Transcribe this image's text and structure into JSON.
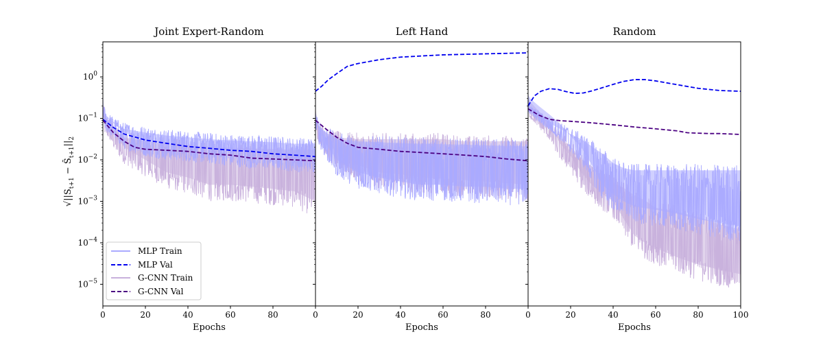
{
  "figure": {
    "ylabel": "√||S_{t+1} − Ŝ_{t+1}||₂",
    "ylabel_parts": {
      "root": "√",
      "body": "||S",
      "sub1": "t+1",
      "minus": " − Ŝ",
      "sub2": "t+1",
      "tail": "||",
      "sub3": "2"
    }
  },
  "legend": {
    "items": [
      {
        "label": "MLP Train",
        "style": "solid",
        "color": "#aaaaff"
      },
      {
        "label": "MLP Val",
        "style": "dashed",
        "color": "#0000ee"
      },
      {
        "label": "G-CNN Train",
        "style": "solid",
        "color": "#c8b0dc"
      },
      {
        "label": "G-CNN Val",
        "style": "dashed",
        "color": "#4b0082"
      }
    ]
  },
  "chart_data": [
    {
      "type": "line",
      "title": "Joint Expert-Random",
      "xlabel": "Epochs",
      "yscale": "log",
      "xlim": [
        0,
        100
      ],
      "ylim": [
        3e-06,
        7
      ],
      "xticks": [
        0,
        20,
        40,
        60,
        80
      ],
      "yticks": [
        1e-05,
        0.0001,
        0.001,
        0.01,
        0.1,
        1
      ],
      "ytick_labels": [
        [
          "10",
          "−5"
        ],
        [
          "10",
          "−4"
        ],
        [
          "10",
          "−3"
        ],
        [
          "10",
          "−2"
        ],
        [
          "10",
          "−1"
        ],
        [
          "10",
          "0"
        ]
      ],
      "series": [
        {
          "name": "MLP Train",
          "kind": "band",
          "color": "#aaaaff",
          "x": [
            0,
            1,
            3,
            6,
            10,
            20,
            30,
            40,
            50,
            60,
            70,
            80,
            90,
            100
          ],
          "low": [
            0.12,
            0.05,
            0.04,
            0.03,
            0.018,
            0.012,
            0.01,
            0.009,
            0.008,
            0.007,
            0.006,
            0.006,
            0.005,
            0.005
          ],
          "high": [
            0.45,
            0.16,
            0.13,
            0.1,
            0.08,
            0.065,
            0.055,
            0.05,
            0.045,
            0.042,
            0.04,
            0.038,
            0.035,
            0.035
          ]
        },
        {
          "name": "G-CNN Train",
          "kind": "band",
          "color": "#c8b0dc",
          "x": [
            0,
            1,
            3,
            6,
            10,
            20,
            30,
            40,
            50,
            60,
            70,
            80,
            90,
            100
          ],
          "low": [
            0.1,
            0.04,
            0.03,
            0.015,
            0.008,
            0.004,
            0.002,
            0.0015,
            0.001,
            0.001,
            0.0009,
            0.0008,
            0.0007,
            0.0004
          ],
          "high": [
            0.3,
            0.12,
            0.1,
            0.07,
            0.05,
            0.04,
            0.035,
            0.032,
            0.03,
            0.028,
            0.027,
            0.026,
            0.025,
            0.025
          ]
        },
        {
          "name": "MLP Val",
          "kind": "dashed",
          "color": "#0000ee",
          "x": [
            0,
            5,
            10,
            20,
            30,
            40,
            50,
            60,
            70,
            80,
            90,
            100
          ],
          "y": [
            0.095,
            0.06,
            0.042,
            0.03,
            0.025,
            0.021,
            0.019,
            0.017,
            0.016,
            0.014,
            0.013,
            0.012
          ]
        },
        {
          "name": "G-CNN Val",
          "kind": "dashed",
          "color": "#4b0082",
          "x": [
            0,
            5,
            10,
            15,
            20,
            30,
            40,
            50,
            60,
            70,
            80,
            90,
            100
          ],
          "y": [
            0.09,
            0.045,
            0.028,
            0.02,
            0.018,
            0.017,
            0.016,
            0.014,
            0.013,
            0.011,
            0.0105,
            0.01,
            0.0095
          ]
        }
      ]
    },
    {
      "type": "line",
      "title": "Left Hand",
      "xlabel": "Epochs",
      "yscale": "log",
      "xlim": [
        0,
        100
      ],
      "ylim": [
        3e-06,
        7
      ],
      "xticks": [
        0,
        20,
        40,
        60,
        80
      ],
      "series": [
        {
          "name": "MLP Train",
          "kind": "band",
          "color": "#aaaaff",
          "x": [
            0,
            1,
            3,
            6,
            10,
            20,
            30,
            40,
            50,
            60,
            70,
            80,
            90,
            100
          ],
          "low": [
            0.06,
            0.03,
            0.015,
            0.008,
            0.004,
            0.002,
            0.0015,
            0.0012,
            0.001,
            0.001,
            0.0009,
            0.0009,
            0.0008,
            0.0008
          ],
          "high": [
            0.15,
            0.1,
            0.08,
            0.06,
            0.045,
            0.04,
            0.038,
            0.036,
            0.035,
            0.034,
            0.033,
            0.032,
            0.031,
            0.03
          ]
        },
        {
          "name": "G-CNN Train",
          "kind": "band",
          "color": "#c8b0dc",
          "x": [
            0,
            1,
            3,
            6,
            10,
            20,
            30,
            40,
            50,
            60,
            70,
            80,
            90,
            100
          ],
          "low": [
            0.07,
            0.03,
            0.02,
            0.01,
            0.006,
            0.003,
            0.002,
            0.0018,
            0.0015,
            0.0014,
            0.0013,
            0.0012,
            0.0011,
            0.001
          ],
          "high": [
            0.12,
            0.09,
            0.075,
            0.06,
            0.05,
            0.045,
            0.045,
            0.045,
            0.045,
            0.045,
            0.04,
            0.04,
            0.04,
            0.04
          ]
        },
        {
          "name": "MLP Val",
          "kind": "dashed",
          "color": "#0000ee",
          "x": [
            0,
            3,
            6,
            10,
            15,
            20,
            30,
            40,
            50,
            60,
            70,
            80,
            90,
            100
          ],
          "y": [
            0.45,
            0.6,
            0.85,
            1.2,
            1.8,
            2.1,
            2.6,
            3.0,
            3.2,
            3.4,
            3.5,
            3.6,
            3.7,
            3.8
          ]
        },
        {
          "name": "G-CNN Val",
          "kind": "dashed",
          "color": "#4b0082",
          "x": [
            0,
            5,
            10,
            15,
            20,
            30,
            40,
            50,
            60,
            70,
            80,
            90,
            100
          ],
          "y": [
            0.09,
            0.055,
            0.035,
            0.025,
            0.02,
            0.018,
            0.016,
            0.015,
            0.014,
            0.013,
            0.012,
            0.0105,
            0.0095
          ]
        }
      ]
    },
    {
      "type": "line",
      "title": "Random",
      "xlabel": "Epochs",
      "yscale": "log",
      "xlim": [
        0,
        100
      ],
      "ylim": [
        3e-06,
        7
      ],
      "xticks": [
        0,
        20,
        40,
        60,
        80,
        100
      ],
      "series": [
        {
          "name": "MLP Train",
          "kind": "band",
          "color": "#aaaaff",
          "x": [
            0,
            1,
            5,
            10,
            15,
            20,
            25,
            30,
            35,
            40,
            45,
            50,
            60,
            70,
            80,
            90,
            100
          ],
          "low": [
            0.15,
            0.12,
            0.08,
            0.05,
            0.03,
            0.015,
            0.008,
            0.003,
            0.001,
            0.0006,
            0.0004,
            0.0003,
            0.00025,
            0.0002,
            0.00015,
            0.00012,
            0.0001
          ],
          "high": [
            0.3,
            0.2,
            0.15,
            0.11,
            0.08,
            0.06,
            0.045,
            0.03,
            0.02,
            0.012,
            0.009,
            0.008,
            0.008,
            0.008,
            0.008,
            0.008,
            0.008
          ]
        },
        {
          "name": "G-CNN Train",
          "kind": "band",
          "color": "#c8b0dc",
          "x": [
            0,
            1,
            5,
            10,
            15,
            20,
            25,
            30,
            35,
            40,
            45,
            50,
            55,
            60,
            70,
            80,
            90,
            100
          ],
          "low": [
            0.12,
            0.1,
            0.06,
            0.03,
            0.01,
            0.005,
            0.002,
            0.001,
            0.0006,
            0.0004,
            0.00015,
            6e-05,
            4e-05,
            3e-05,
            1.8e-05,
            1.2e-05,
            9e-06,
            7e-06
          ],
          "high": [
            0.25,
            0.18,
            0.12,
            0.08,
            0.05,
            0.03,
            0.015,
            0.01,
            0.006,
            0.004,
            0.003,
            0.002,
            0.0015,
            0.001,
            0.0008,
            0.0006,
            0.0004,
            0.0003
          ]
        },
        {
          "name": "MLP Val",
          "kind": "dashed",
          "color": "#0000ee",
          "x": [
            0,
            3,
            6,
            10,
            14,
            18,
            22,
            26,
            30,
            35,
            40,
            45,
            50,
            55,
            60,
            70,
            80,
            90,
            100
          ],
          "y": [
            0.2,
            0.35,
            0.45,
            0.52,
            0.5,
            0.44,
            0.4,
            0.41,
            0.46,
            0.55,
            0.66,
            0.78,
            0.86,
            0.86,
            0.8,
            0.65,
            0.53,
            0.47,
            0.45
          ]
        },
        {
          "name": "G-CNN Val",
          "kind": "dashed",
          "color": "#4b0082",
          "x": [
            0,
            5,
            10,
            15,
            20,
            30,
            40,
            50,
            60,
            70,
            75,
            80,
            85,
            90,
            95,
            100
          ],
          "y": [
            0.17,
            0.12,
            0.095,
            0.088,
            0.085,
            0.078,
            0.07,
            0.062,
            0.056,
            0.05,
            0.045,
            0.044,
            0.043,
            0.043,
            0.042,
            0.041
          ]
        }
      ]
    }
  ]
}
